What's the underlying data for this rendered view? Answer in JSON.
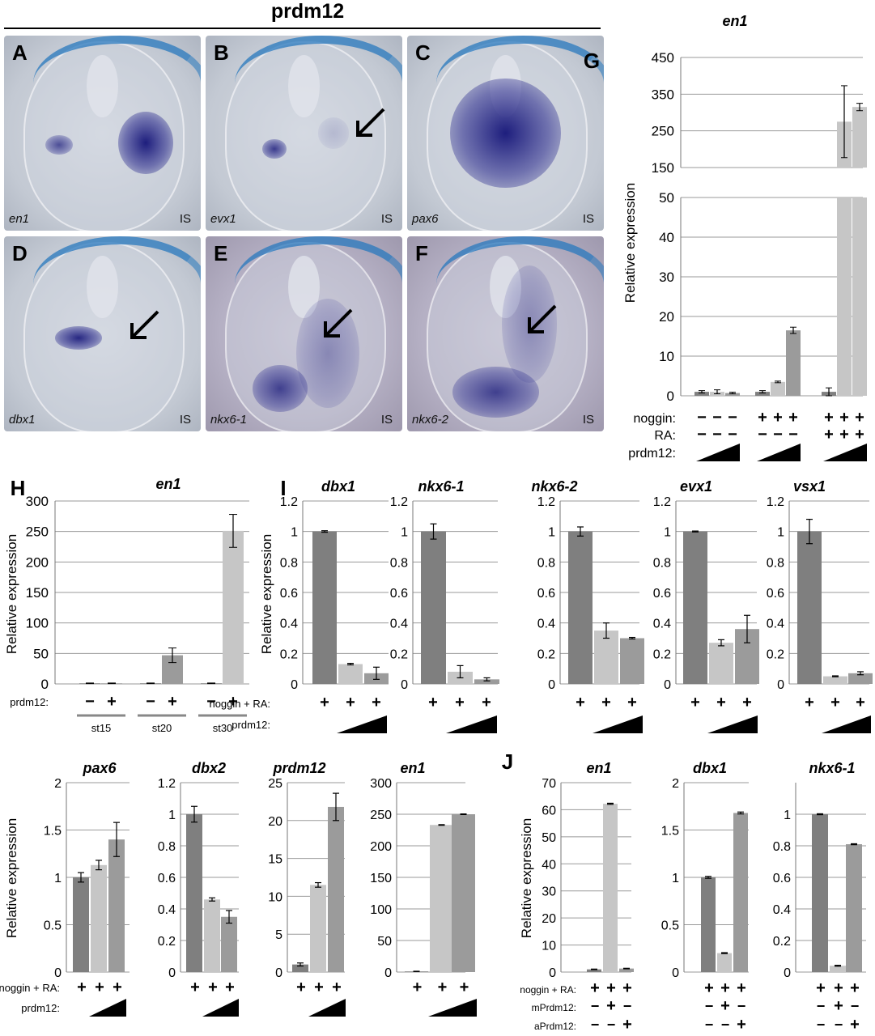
{
  "figure_title": "prdm12",
  "micrographs": [
    {
      "letter": "A",
      "gene": "en1",
      "section": "IS"
    },
    {
      "letter": "B",
      "gene": "evx1",
      "section": "IS"
    },
    {
      "letter": "C",
      "gene": "pax6",
      "section": "IS"
    },
    {
      "letter": "D",
      "gene": "dbx1",
      "section": "IS"
    },
    {
      "letter": "E",
      "gene": "nkx6-1",
      "section": "IS"
    },
    {
      "letter": "F",
      "gene": "nkx6-2",
      "section": "IS"
    }
  ],
  "labels": {
    "ylabel": "Relative expression",
    "row_noggin": "noggin:",
    "row_ra": "RA:",
    "row_prdm12": "prdm12:",
    "row_noggin_ra": "noggin + RA:",
    "row_mprdm12": "mPrdm12:",
    "row_aprdm12": "aPrdm12:",
    "plus": "+",
    "minus": "−"
  },
  "colors": {
    "dark": "#7f7f7f",
    "light": "#c6c6c6",
    "mid": "#9b9b9b",
    "grid": "#9a9a9a"
  },
  "chart_data": [
    {
      "id": "G",
      "type": "bar",
      "title": "en1",
      "ylabel": "Relative expression",
      "broken_axis": true,
      "lower_ylim": [
        0,
        50
      ],
      "upper_ylim": [
        150,
        450
      ],
      "groups": [
        {
          "noggin": "−",
          "RA": "−",
          "values": [
            1,
            1,
            0.7
          ],
          "errors": [
            0.3,
            0.5,
            0.2
          ]
        },
        {
          "noggin": "+",
          "RA": "−",
          "values": [
            1,
            3.5,
            16.5
          ],
          "errors": [
            0.3,
            0.2,
            0.8
          ]
        },
        {
          "noggin": "+",
          "RA": "+",
          "values": [
            1,
            275,
            315
          ],
          "errors": [
            1,
            98,
            10
          ]
        }
      ]
    },
    {
      "id": "H",
      "type": "bar",
      "title": "en1",
      "ylabel": "Relative expression",
      "ylim": [
        0,
        300
      ],
      "groups": [
        {
          "stage": "st15",
          "values": [
            1,
            1
          ],
          "errors": [
            0.5,
            0.5
          ]
        },
        {
          "stage": "st20",
          "values": [
            1,
            47
          ],
          "errors": [
            0.5,
            12
          ]
        },
        {
          "stage": "st30",
          "values": [
            1,
            251
          ],
          "errors": [
            0.5,
            27
          ]
        }
      ],
      "prdm12": [
        "−",
        "+"
      ]
    },
    {
      "id": "I",
      "type": "bar",
      "title": "dbx1",
      "ylim": [
        0,
        1.2
      ],
      "values": [
        1,
        0.13,
        0.07
      ],
      "errors": [
        0.005,
        0.005,
        0.04
      ]
    },
    {
      "id": "I",
      "type": "bar",
      "title": "nkx6-1",
      "ylim": [
        0,
        1.2
      ],
      "values": [
        1,
        0.08,
        0.03
      ],
      "errors": [
        0.05,
        0.04,
        0.01
      ]
    },
    {
      "id": "I",
      "type": "bar",
      "title": "nkx6-2",
      "ylim": [
        0,
        1.2
      ],
      "values": [
        1,
        0.35,
        0.3
      ],
      "errors": [
        0.03,
        0.05,
        0.005
      ]
    },
    {
      "id": "I",
      "type": "bar",
      "title": "evx1",
      "ylim": [
        0,
        1.2
      ],
      "values": [
        1,
        0.27,
        0.36
      ],
      "errors": [
        0.003,
        0.02,
        0.09
      ]
    },
    {
      "id": "I",
      "type": "bar",
      "title": "vsx1",
      "ylim": [
        0,
        1.2
      ],
      "values": [
        1,
        0.05,
        0.07
      ],
      "errors": [
        0.08,
        0.003,
        0.01
      ]
    },
    {
      "id": "I",
      "type": "bar",
      "title": "pax6",
      "ylim": [
        0,
        2
      ],
      "values": [
        1,
        1.13,
        1.4
      ],
      "errors": [
        0.05,
        0.05,
        0.18
      ]
    },
    {
      "id": "I",
      "type": "bar",
      "title": "dbx2",
      "ylim": [
        0,
        1.2
      ],
      "values": [
        1,
        0.46,
        0.35
      ],
      "errors": [
        0.05,
        0.01,
        0.04
      ]
    },
    {
      "id": "I",
      "type": "bar",
      "title": "prdm12",
      "ylim": [
        0,
        25
      ],
      "values": [
        1,
        11.5,
        21.8
      ],
      "errors": [
        0.2,
        0.3,
        1.8
      ]
    },
    {
      "id": "I",
      "type": "bar",
      "title": "en1",
      "ylim": [
        0,
        300
      ],
      "values": [
        1,
        233,
        250
      ],
      "errors": [
        0.3,
        0.5,
        0.5
      ]
    },
    {
      "id": "J",
      "type": "bar",
      "title": "en1",
      "ylim": [
        0,
        70
      ],
      "values": [
        1,
        62.2,
        1.3
      ],
      "errors": [
        0.1,
        0.2,
        0.1
      ]
    },
    {
      "id": "J",
      "type": "bar",
      "title": "dbx1",
      "ylim": [
        0,
        2
      ],
      "values": [
        1,
        0.2,
        1.68
      ],
      "errors": [
        0.01,
        0.005,
        0.01
      ]
    },
    {
      "id": "J",
      "type": "bar",
      "title": "nkx6-1",
      "ylim": [
        0,
        1.2
      ],
      "values": [
        1,
        0.04,
        0.81
      ],
      "errors": [
        0.003,
        0.003,
        0.003
      ]
    }
  ]
}
